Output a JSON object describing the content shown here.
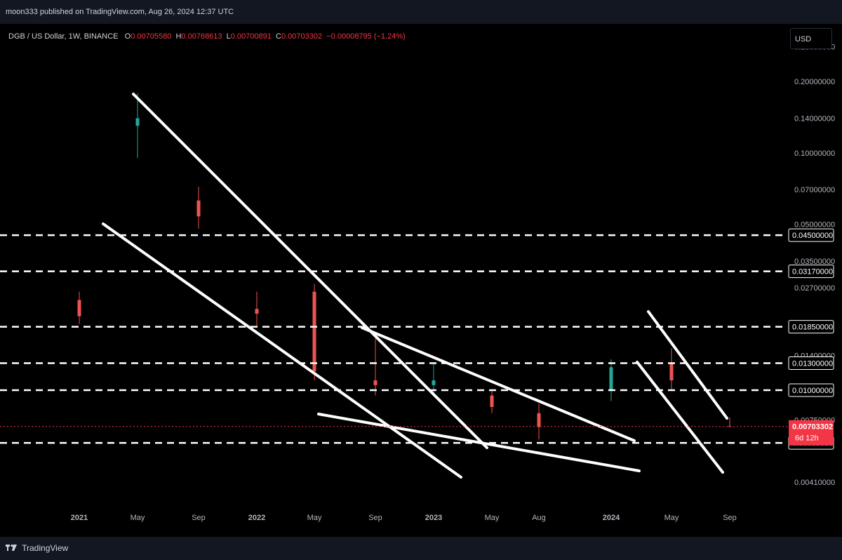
{
  "header": {
    "published": "moon333 published on TradingView.com, Aug 26, 2024 12:37 UTC"
  },
  "legend": {
    "symbol": "DGB / US Dollar, 1W, BINANCE",
    "o_label": "O",
    "o_value": "0.00705580",
    "h_label": "H",
    "h_value": "0.00768613",
    "l_label": "L",
    "l_value": "0.00700891",
    "c_label": "C",
    "c_value": "0.00703302",
    "change": "−0.00008795 (−1.24%)"
  },
  "currency_button": "USD",
  "footer": {
    "brand": "TradingView"
  },
  "colors": {
    "up": "#26a69a",
    "down": "#ef5350",
    "price_tag": "#f23645",
    "lines": "#ffffff"
  },
  "chart_data": {
    "type": "candlestick",
    "scale": "log",
    "x_ticks": [
      "2021",
      "May",
      "Sep",
      "2022",
      "May",
      "Sep",
      "2023",
      "May",
      "Aug",
      "2024",
      "May",
      "Sep"
    ],
    "y_ticks": [
      "0.28000000",
      "0.20000000",
      "0.14000000",
      "0.10000000",
      "0.07000000",
      "0.05000000",
      "0.03500000",
      "0.02700000",
      "0.01400000",
      "0.00750000",
      "0.00410000"
    ],
    "horizontal_levels": [
      "0.04500000",
      "0.03170000",
      "0.01850000",
      "0.01300000",
      "0.01000000",
      "0.00600000"
    ],
    "current_price": "0.00703302",
    "countdown": "6d 12h",
    "candles": [
      {
        "x": "2021",
        "o": 0.024,
        "h": 0.026,
        "l": 0.019,
        "c": 0.0205
      },
      {
        "x": "May",
        "o": 0.13,
        "h": 0.178,
        "l": 0.095,
        "c": 0.14
      },
      {
        "x": "Sep",
        "o": 0.063,
        "h": 0.072,
        "l": 0.048,
        "c": 0.054
      },
      {
        "x": "2022",
        "o": 0.022,
        "h": 0.026,
        "l": 0.0185,
        "c": 0.021
      },
      {
        "x": "May",
        "o": 0.026,
        "h": 0.028,
        "l": 0.011,
        "c": 0.012
      },
      {
        "x": "Sep",
        "o": 0.011,
        "h": 0.0165,
        "l": 0.0095,
        "c": 0.0105
      },
      {
        "x": "2023",
        "o": 0.0105,
        "h": 0.013,
        "l": 0.0095,
        "c": 0.011
      },
      {
        "x": "May",
        "o": 0.0095,
        "h": 0.01,
        "l": 0.008,
        "c": 0.0085
      },
      {
        "x": "Aug",
        "o": 0.008,
        "h": 0.0088,
        "l": 0.0062,
        "c": 0.007
      },
      {
        "x": "2024",
        "o": 0.01,
        "h": 0.0135,
        "l": 0.009,
        "c": 0.0125
      },
      {
        "x": "May",
        "o": 0.013,
        "h": 0.015,
        "l": 0.01,
        "c": 0.011
      },
      {
        "x": "Sep",
        "o": 0.0070558,
        "h": 0.00768613,
        "l": 0.00700891,
        "c": 0.00703302
      }
    ],
    "grid": false
  }
}
